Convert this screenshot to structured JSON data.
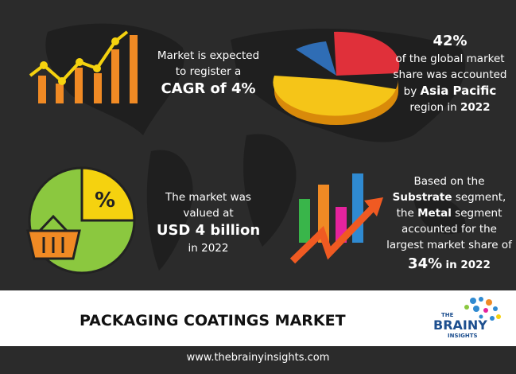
{
  "cagr": {
    "lines": [
      "Market is expected",
      "to register a"
    ],
    "highlight": "CAGR of 4%"
  },
  "share": {
    "value": "42%",
    "lines": [
      "of the global market",
      "share was accounted"
    ],
    "by": "by",
    "region": "Asia Pacific",
    "tail": "region in",
    "year": "2022"
  },
  "valuation": {
    "lines": [
      "The market was",
      "valued at"
    ],
    "highlight": "USD 4 billion",
    "year": "in 2022"
  },
  "segment": {
    "intro": "Based on the",
    "segment_type": "Substrate",
    "segment_word": "segment,",
    "the": "the",
    "leader": "Metal",
    "leader_word": "segment",
    "lines": [
      "accounted for the",
      "largest market share of"
    ],
    "value": "34%",
    "year": "in 2022"
  },
  "icon_percent": "%",
  "title": "PACKAGING COATINGS MARKET",
  "logo": {
    "top": "THE",
    "main": "BRAINY",
    "bottom": "INSIGHTS"
  },
  "footer": "www.thebrainyinsights.com"
}
